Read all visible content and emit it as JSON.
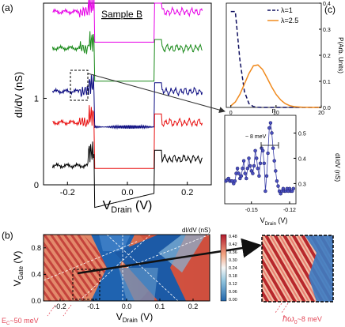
{
  "panels": {
    "a": {
      "label": "(a)",
      "annotation": "Sample B"
    },
    "b": {
      "label": "(b)"
    },
    "c": {
      "label": "(c)"
    }
  },
  "colors": {
    "magenta": "#e600e6",
    "green": "#1a8a1a",
    "navy": "#0a0a80",
    "red": "#e81010",
    "black": "#000000",
    "orange": "#f08a1e",
    "dashed_navy": "#101060",
    "dot_fill": "#4a50c0",
    "map_red": "#b2182b",
    "map_blue": "#2166ac"
  },
  "chart_data": [
    {
      "id": "a",
      "type": "line",
      "xlabel": "V",
      "xlabel_sub": "Drain",
      "xlabel_unit": " (V)",
      "ylabel": "dI/dV (nS)",
      "xlim": [
        -0.28,
        0.28
      ],
      "xticks": [
        -0.2,
        0.0,
        0.2
      ],
      "xtick_labels": [
        "-0.2",
        "0.0",
        "0.2"
      ],
      "yticks": [
        0,
        1
      ],
      "ytick_labels": [
        "0",
        "1"
      ],
      "ylim": [
        0,
        2.1
      ],
      "series": [
        {
          "color_key": "magenta",
          "offset": 2.0,
          "gap": 0.12,
          "bottom_raise": 0.0
        },
        {
          "color_key": "green",
          "offset": 1.58,
          "gap": 0.15,
          "bottom_raise": 0.0
        },
        {
          "color_key": "navy",
          "offset": 1.08,
          "gap": 0.18,
          "bottom_raise": 0.0
        },
        {
          "color_key": "red",
          "offset": 0.72,
          "gap": 0.2,
          "bottom_raise": 0.0
        },
        {
          "color_key": "black",
          "offset": 0.3,
          "gap": 0.24,
          "bottom_raise": 0.18
        }
      ]
    },
    {
      "id": "c_top",
      "type": "line",
      "xlabel": "n",
      "ylabel": "P(Arb. Units)",
      "xlim": [
        -1,
        20
      ],
      "ylim": [
        0,
        0.4
      ],
      "xticks": [
        0,
        10,
        20
      ],
      "xtick_labels": [
        "0",
        "10",
        "20"
      ],
      "yticks": [
        0.0,
        0.1,
        0.2,
        0.3,
        0.4
      ],
      "ytick_labels": [
        "0.0",
        "0.1",
        "0.2",
        "0.3",
        "0.4"
      ],
      "series": [
        {
          "name": "λ=1",
          "color_key": "dashed_navy",
          "dashed": true,
          "x": [
            0,
            1,
            2,
            3,
            4,
            5,
            6,
            7,
            8,
            9,
            10,
            12,
            14,
            16,
            18,
            20
          ],
          "y": [
            0.368,
            0.368,
            0.184,
            0.061,
            0.015,
            0.003,
            0.0005,
            0.0001,
            0,
            0,
            0,
            0,
            0,
            0,
            0,
            0
          ]
        },
        {
          "name": "λ=2.5",
          "color_key": "orange",
          "dashed": false,
          "x": [
            0,
            1,
            2,
            3,
            4,
            5,
            6,
            7,
            8,
            9,
            10,
            11,
            12,
            13,
            14,
            16,
            18,
            20
          ],
          "y": [
            0.006,
            0.021,
            0.05,
            0.09,
            0.13,
            0.16,
            0.163,
            0.146,
            0.114,
            0.08,
            0.05,
            0.029,
            0.015,
            0.007,
            0.003,
            0.0005,
            0.0001,
            0
          ]
        }
      ]
    },
    {
      "id": "c_bottom",
      "type": "scatter",
      "xlabel": "V",
      "xlabel_sub": "Drain",
      "xlabel_unit": " (V)",
      "ylabel": "dI/dV (nS)",
      "annotation": "~ 8 meV",
      "xlim": [
        -0.171,
        -0.115
      ],
      "ylim": [
        0.22,
        0.57
      ],
      "xticks": [
        -0.15,
        -0.12
      ],
      "xtick_labels": [
        "-0.15",
        "-0.12"
      ],
      "yticks": [
        0.3,
        0.4,
        0.5
      ],
      "ytick_labels": [
        "0.3",
        "0.4",
        "0.5"
      ],
      "series": [
        {
          "color_key": "dot_fill",
          "x": [
            -0.17,
            -0.169,
            -0.168,
            -0.167,
            -0.166,
            -0.165,
            -0.164,
            -0.163,
            -0.162,
            -0.161,
            -0.16,
            -0.159,
            -0.158,
            -0.157,
            -0.156,
            -0.155,
            -0.154,
            -0.153,
            -0.152,
            -0.151,
            -0.15,
            -0.149,
            -0.148,
            -0.147,
            -0.146,
            -0.145,
            -0.144,
            -0.143,
            -0.142,
            -0.141,
            -0.14,
            -0.139,
            -0.138,
            -0.137,
            -0.136,
            -0.135,
            -0.134,
            -0.133,
            -0.132,
            -0.131,
            -0.13,
            -0.129,
            -0.128,
            -0.127,
            -0.126,
            -0.125,
            -0.124,
            -0.123,
            -0.122,
            -0.121,
            -0.12,
            -0.119,
            -0.118,
            -0.117
          ],
          "y": [
            0.31,
            0.315,
            0.32,
            0.31,
            0.31,
            0.31,
            0.3,
            0.31,
            0.34,
            0.36,
            0.34,
            0.32,
            0.33,
            0.36,
            0.39,
            0.34,
            0.32,
            0.36,
            0.4,
            0.37,
            0.35,
            0.34,
            0.37,
            0.43,
            0.4,
            0.36,
            0.33,
            0.38,
            0.44,
            0.43,
            0.38,
            0.27,
            0.33,
            0.42,
            0.52,
            0.54,
            0.5,
            0.44,
            0.39,
            0.35,
            0.31,
            0.29,
            0.27,
            0.26,
            0.27,
            0.28,
            0.27,
            0.27,
            0.28,
            0.27,
            0.28,
            0.27,
            0.27,
            0.28
          ]
        }
      ]
    },
    {
      "id": "b",
      "type": "heatmap",
      "xlabel": "V",
      "xlabel_sub": "Drain",
      "xlabel_unit": " (V)",
      "ylabel": "V",
      "ylabel_sub": "Gate",
      "ylabel_unit": " (V)",
      "xlim": [
        -0.25,
        0.25
      ],
      "ylim": [
        0.0,
        1.0
      ],
      "xticks": [
        -0.2,
        -0.1,
        0.0,
        0.1,
        0.2
      ],
      "xtick_labels": [
        "-0.2",
        "-0.1",
        "0.0",
        "0.1",
        "0.2"
      ],
      "yticks": [
        0.0,
        0.4,
        0.8
      ],
      "ytick_labels": [
        "0.0",
        "0.4",
        "0.8"
      ],
      "colorbar_title": "dI/dV (nS)",
      "colorbar_ticks": [
        "0.48",
        "0.42",
        "0.36",
        "0.30",
        "0.24",
        "0.18",
        "0.12",
        "0.06",
        "0.00"
      ],
      "annotation_left": "E",
      "annotation_left_sub": "C",
      "annotation_left_rest": "~50 meV",
      "annotation_right": "ħω",
      "annotation_right_sub": "0",
      "annotation_right_rest": "~8 meV"
    }
  ]
}
